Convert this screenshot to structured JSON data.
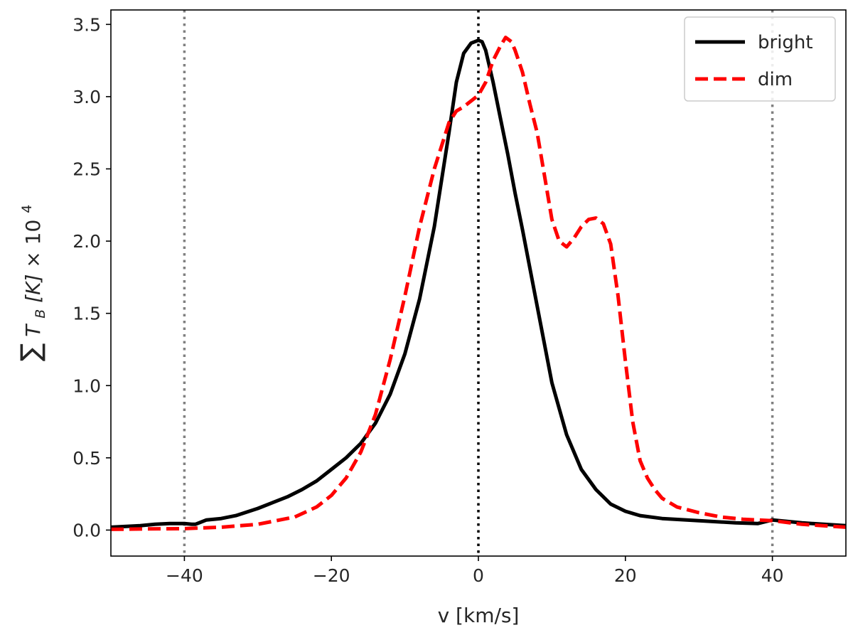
{
  "chart_data": {
    "type": "line",
    "xlabel": "v [km/s]",
    "ylabel": {
      "sum": "∑",
      "symbol": "T",
      "subscript": "B",
      "unit": " [K]",
      "times": " × 10",
      "exponent": "4"
    },
    "xlim": [
      -50,
      50
    ],
    "ylim": [
      -0.18,
      3.6
    ],
    "xticks": [
      -40,
      -20,
      0,
      20,
      40
    ],
    "xtick_labels": [
      "−40",
      "−20",
      "0",
      "20",
      "40"
    ],
    "yticks": [
      0.0,
      0.5,
      1.0,
      1.5,
      2.0,
      2.5,
      3.0,
      3.5
    ],
    "ytick_labels": [
      "0.0",
      "0.5",
      "1.0",
      "1.5",
      "2.0",
      "2.5",
      "3.0",
      "3.5"
    ],
    "reference_lines": [
      {
        "x": -40,
        "color": "#808080",
        "style": "dotted"
      },
      {
        "x": 0,
        "color": "#000000",
        "style": "dotted"
      },
      {
        "x": 40,
        "color": "#808080",
        "style": "dotted"
      }
    ],
    "legend_position": "upper right",
    "series": [
      {
        "name": "bright",
        "color": "#000000",
        "dash": "solid",
        "x": [
          -50,
          -46,
          -44,
          -42,
          -40,
          -39,
          -38.5,
          -37,
          -35,
          -33,
          -30,
          -28,
          -26,
          -24,
          -22,
          -20,
          -18,
          -16,
          -14,
          -12,
          -10,
          -8,
          -6,
          -4,
          -3,
          -2,
          -1,
          0,
          0.5,
          1,
          2,
          3,
          4,
          5,
          6,
          8,
          10,
          12,
          14,
          16,
          18,
          20,
          22,
          25,
          30,
          35,
          38,
          40,
          44,
          50
        ],
        "y": [
          0.02,
          0.03,
          0.04,
          0.045,
          0.045,
          0.04,
          0.04,
          0.07,
          0.08,
          0.1,
          0.15,
          0.19,
          0.23,
          0.28,
          0.34,
          0.42,
          0.5,
          0.6,
          0.74,
          0.94,
          1.22,
          1.6,
          2.1,
          2.75,
          3.1,
          3.3,
          3.37,
          3.39,
          3.38,
          3.32,
          3.1,
          2.85,
          2.6,
          2.33,
          2.08,
          1.55,
          1.02,
          0.66,
          0.42,
          0.28,
          0.18,
          0.13,
          0.1,
          0.08,
          0.065,
          0.05,
          0.045,
          0.07,
          0.05,
          0.03
        ]
      },
      {
        "name": "dim",
        "color": "#ff0000",
        "dash": "dashed",
        "x": [
          -50,
          -45,
          -40,
          -35,
          -30,
          -25,
          -22,
          -20,
          -18,
          -16,
          -14,
          -12,
          -10,
          -8,
          -6,
          -4,
          -3,
          -2,
          -1,
          0,
          1,
          2,
          3,
          3.7,
          4.5,
          5,
          6,
          7,
          8,
          9,
          10,
          11,
          12,
          13,
          14,
          15,
          16,
          17,
          18,
          19,
          20,
          21,
          22,
          23,
          24,
          25,
          27,
          30,
          33,
          36,
          40,
          44,
          50
        ],
        "y": [
          0.005,
          0.008,
          0.01,
          0.02,
          0.04,
          0.09,
          0.16,
          0.24,
          0.36,
          0.54,
          0.8,
          1.18,
          1.62,
          2.1,
          2.5,
          2.82,
          2.9,
          2.93,
          2.97,
          3.01,
          3.1,
          3.25,
          3.35,
          3.41,
          3.38,
          3.32,
          3.17,
          2.95,
          2.75,
          2.45,
          2.15,
          2.0,
          1.96,
          2.02,
          2.1,
          2.15,
          2.16,
          2.12,
          1.98,
          1.62,
          1.17,
          0.75,
          0.48,
          0.36,
          0.28,
          0.22,
          0.16,
          0.12,
          0.09,
          0.075,
          0.065,
          0.04,
          0.02
        ]
      }
    ]
  }
}
